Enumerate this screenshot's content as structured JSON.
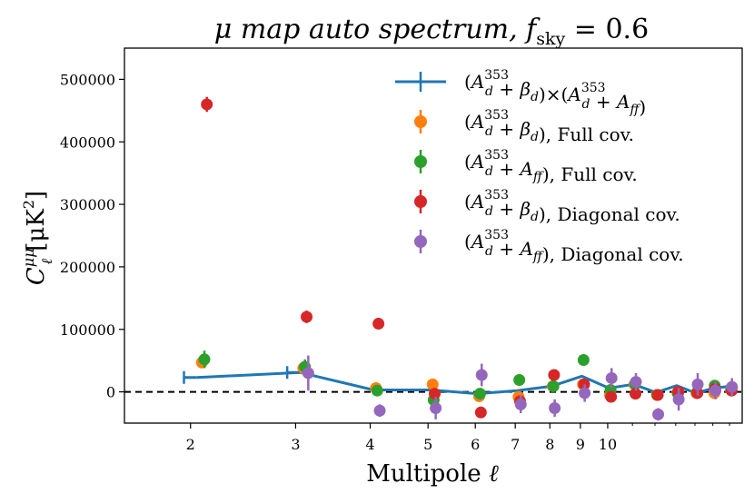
{
  "chart_data": {
    "type": "scatter",
    "title": {
      "pre": "μ map auto spectrum, ",
      "f": "f",
      "sub": "sky",
      "post": " = 0.6"
    },
    "xlabel": {
      "text": "Multipole ",
      "symbol": "ℓ"
    },
    "ylabel": {
      "C": "C",
      "sup": "μμ",
      "sub": "ℓ",
      "unit": "[μK",
      "unit_sup": "2",
      "unit_close": "]"
    },
    "x_scale": "log",
    "xlim": [
      1.55,
      16.8
    ],
    "ylim": [
      -50000,
      550000
    ],
    "xticks": [
      2,
      3,
      4,
      5,
      6,
      7,
      8,
      9,
      10
    ],
    "yticks": [
      0,
      100000,
      200000,
      300000,
      400000,
      500000
    ],
    "zero_line": {
      "y": 0,
      "style": "dashed",
      "color": "#000000"
    },
    "legend": {
      "position": "upper right",
      "frame": false
    },
    "series": [
      {
        "key": "s0",
        "kind": "line-errorbar",
        "color": "#1f77b4",
        "label": [
          {
            "t": "("
          },
          {
            "t": "A",
            "it": true
          },
          {
            "t": "353",
            "sup": true,
            "sub": "d"
          },
          {
            "t": " + "
          },
          {
            "t": "β",
            "it": true
          },
          {
            "t": "d",
            "sub2": true
          },
          {
            "t": ")×("
          },
          {
            "t": "A",
            "it": true
          },
          {
            "t": "353",
            "sup": true,
            "sub": "d"
          },
          {
            "t": " + "
          },
          {
            "t": "A",
            "it": true
          },
          {
            "t": "ff",
            "sub2": true
          },
          {
            "t": ")"
          }
        ],
        "x": [
          2.05,
          3.05,
          4.05,
          5.05,
          6.05,
          7.05,
          8.05,
          9.05,
          10.05,
          11.05,
          12.05,
          13.05,
          14.05,
          15.05,
          16.05
        ],
        "y": [
          23000,
          31000,
          3000,
          3000,
          -3000,
          2000,
          9000,
          25000,
          6000,
          12000,
          -1000,
          10000,
          -2000,
          6000,
          9000
        ],
        "xerr_first": [
          1.95,
          2.05
        ]
      },
      {
        "key": "s1",
        "kind": "points",
        "color": "#ff7f0e",
        "label": [
          {
            "t": "("
          },
          {
            "t": "A",
            "it": true
          },
          {
            "t": "353",
            "sup": true,
            "sub": "d"
          },
          {
            "t": " + "
          },
          {
            "t": "β",
            "it": true
          },
          {
            "t": "d",
            "sub2": true
          },
          {
            "t": "), Full cov."
          }
        ],
        "x": [
          2.09,
          3.09,
          4.09,
          5.09,
          6.09,
          7.09,
          8.09,
          9.09,
          10.09,
          11.09,
          12.09,
          13.09,
          14.09,
          15.09,
          16.09
        ],
        "y": [
          47000,
          38000,
          6000,
          12000,
          -7000,
          -8000,
          9000,
          12000,
          -5000,
          12000,
          -5000,
          -1000,
          -2000,
          -2000,
          3000
        ],
        "err": [
          6000,
          6000,
          5000,
          5000,
          5000,
          5000,
          5000,
          5000,
          5000,
          5000,
          5000,
          5000,
          5000,
          5000,
          5000
        ]
      },
      {
        "key": "s2",
        "kind": "points",
        "color": "#2ca02c",
        "label": [
          {
            "t": "("
          },
          {
            "t": "A",
            "it": true
          },
          {
            "t": "353",
            "sup": true,
            "sub": "d"
          },
          {
            "t": " + "
          },
          {
            "t": "A",
            "it": true
          },
          {
            "t": "ff",
            "sub2": true
          },
          {
            "t": "), Full cov."
          }
        ],
        "x": [
          2.11,
          3.11,
          4.11,
          5.11,
          6.11,
          7.11,
          8.11,
          9.11,
          10.11,
          11.11,
          12.11,
          13.11,
          14.11,
          15.11,
          16.11
        ],
        "y": [
          52000,
          40000,
          2000,
          -13000,
          -3000,
          19000,
          9000,
          51000,
          3000,
          12000,
          -5000,
          -3000,
          -1000,
          10000,
          5000
        ],
        "err": [
          14000,
          12000,
          6000,
          6000,
          6000,
          5000,
          5000,
          5000,
          5000,
          5000,
          5000,
          5000,
          5000,
          5000,
          5000
        ]
      },
      {
        "key": "s3",
        "kind": "points",
        "color": "#d62728",
        "label": [
          {
            "t": "("
          },
          {
            "t": "A",
            "it": true
          },
          {
            "t": "353",
            "sup": true,
            "sub": "d"
          },
          {
            "t": " + "
          },
          {
            "t": "β",
            "it": true
          },
          {
            "t": "d",
            "sub2": true
          },
          {
            "t": "), Diagonal cov."
          }
        ],
        "x": [
          2.13,
          3.13,
          4.13,
          5.13,
          6.13,
          7.13,
          8.13,
          9.13,
          10.13,
          11.13,
          12.13,
          13.13,
          14.13,
          15.13,
          16.13
        ],
        "y": [
          460000,
          120000,
          109000,
          -3000,
          -33000,
          -15000,
          27000,
          12000,
          -8000,
          -3000,
          -5000,
          0,
          -2000,
          5000,
          2000
        ],
        "err": [
          12000,
          10000,
          6000,
          6000,
          6000,
          6000,
          6000,
          6000,
          6000,
          6000,
          6000,
          6000,
          6000,
          6000,
          6000
        ]
      },
      {
        "key": "s4",
        "kind": "points",
        "color": "#9467bd",
        "label": [
          {
            "t": "("
          },
          {
            "t": "A",
            "it": true
          },
          {
            "t": "353",
            "sup": true,
            "sub": "d"
          },
          {
            "t": " + "
          },
          {
            "t": "A",
            "it": true
          },
          {
            "t": "ff",
            "sub2": true
          },
          {
            "t": "), Diagonal cov."
          }
        ],
        "x": [
          2.15,
          3.15,
          4.15,
          5.15,
          6.15,
          7.15,
          8.15,
          9.15,
          10.15,
          11.15,
          12.15,
          13.15,
          14.15,
          15.15,
          16.15
        ],
        "y": [
          null,
          30000,
          -30000,
          -26000,
          27000,
          -20000,
          -26000,
          -2000,
          22000,
          16000,
          -36000,
          -12000,
          12000,
          2000,
          8000
        ],
        "err": [
          null,
          28000,
          10000,
          18000,
          18000,
          14000,
          14000,
          14000,
          16000,
          14000,
          10000,
          18000,
          18000,
          14000,
          14000
        ]
      }
    ]
  }
}
